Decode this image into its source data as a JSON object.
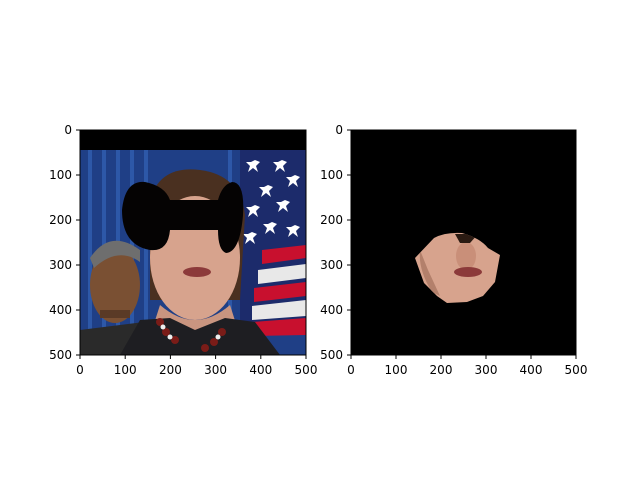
{
  "figure": {
    "background": "#ffffff",
    "panels": [
      {
        "name": "left-panel",
        "image_description": "Woman in front of US flag and blue curtain; eyes region masked by black bow-tie shape; top band black",
        "xlim": [
          0,
          500
        ],
        "ylim": [
          500,
          0
        ],
        "xticks": [
          "0",
          "100",
          "200",
          "300",
          "400",
          "500"
        ],
        "yticks": [
          "0",
          "100",
          "200",
          "300",
          "400",
          "500"
        ]
      },
      {
        "name": "right-panel",
        "image_description": "Black image with only the lower face region (nose, mouth, chin) visible",
        "xlim": [
          0,
          500
        ],
        "ylim": [
          500,
          0
        ],
        "xticks": [
          "0",
          "100",
          "200",
          "300",
          "400",
          "500"
        ],
        "yticks": [
          "0",
          "100",
          "200",
          "300",
          "400",
          "500"
        ]
      }
    ]
  }
}
